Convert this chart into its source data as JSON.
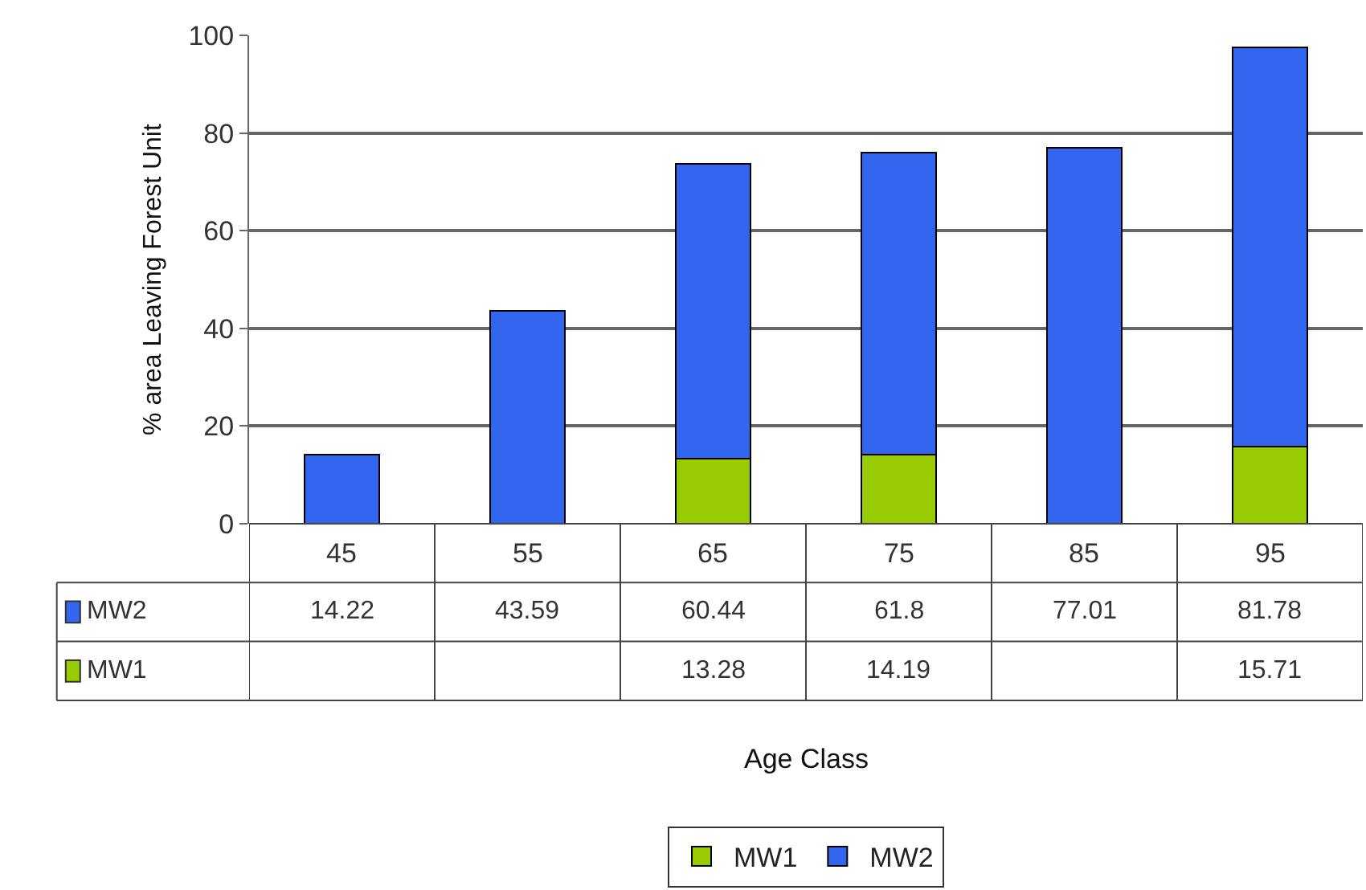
{
  "chart_data": {
    "type": "bar",
    "stacked": true,
    "annotations": [
      "Age Class"
    ],
    "ylabel": "% area Leaving Forest Unit",
    "categories": [
      "45",
      "55",
      "65",
      "75",
      "85",
      "95"
    ],
    "series": [
      {
        "name": "MW1",
        "color": "#99cc00",
        "values": [
          null,
          null,
          13.28,
          14.19,
          null,
          15.71
        ]
      },
      {
        "name": "MW2",
        "color": "#3366ee",
        "values": [
          14.22,
          43.59,
          60.44,
          61.8,
          77.01,
          81.78
        ]
      }
    ],
    "ylim": [
      0,
      100
    ],
    "yticks": [
      0,
      20,
      40,
      60,
      80,
      100
    ],
    "grid": "y",
    "legend": "bottom",
    "data_labels": true
  }
}
